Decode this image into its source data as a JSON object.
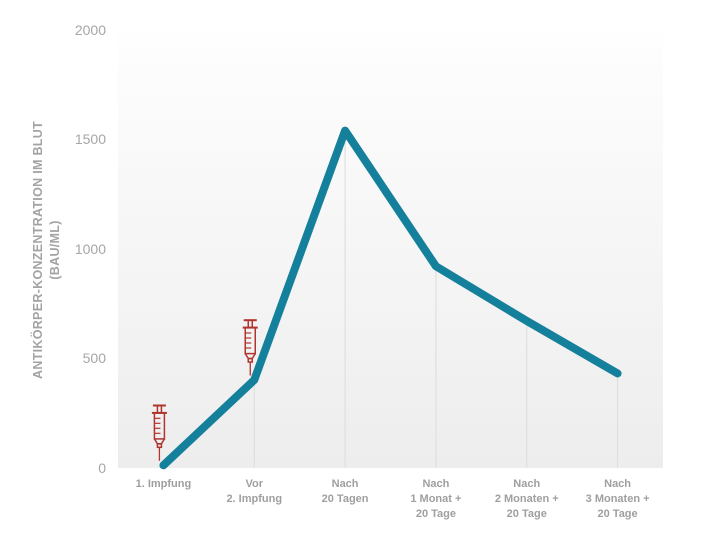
{
  "chart_data": {
    "type": "line",
    "title": "",
    "xlabel": "",
    "ylabel": "ANTIKÖRPER-KONZENTRATION IM BLUT (BAU/ML)",
    "ylabel_line1": "ANTIKÖRPER-KONZENTRATION IM BLUT",
    "ylabel_line2": "(BAU/ML)",
    "categories": [
      [
        "1. Impfung"
      ],
      [
        "Vor",
        "2. Impfung"
      ],
      [
        "Nach",
        "20 Tagen"
      ],
      [
        "Nach",
        "1 Monat +",
        "20 Tage"
      ],
      [
        "Nach",
        "2 Monaten +",
        "20 Tage"
      ],
      [
        "Nach",
        "3 Monaten +",
        "20 Tage"
      ]
    ],
    "series": [
      {
        "name": "Antikörper-Konzentration im Blut",
        "values": [
          10,
          400,
          1540,
          920,
          670,
          430
        ]
      }
    ],
    "yticks": [
      0,
      500,
      1000,
      1500,
      2000
    ],
    "ylim": [
      0,
      2000
    ],
    "legend": "none",
    "grid": "vertical drop-lines under each data point",
    "marker_icons": [
      {
        "index": 0,
        "icon": "syringe-icon"
      },
      {
        "index": 1,
        "icon": "syringe-icon"
      }
    ],
    "colors": {
      "line": "#15809b",
      "syringe": "#b0342f",
      "axis_text": "#a6a6a6",
      "dropline": "#dcdcdc",
      "plot_bg_top": "#fefefe",
      "plot_bg_bottom": "#ededed"
    }
  }
}
